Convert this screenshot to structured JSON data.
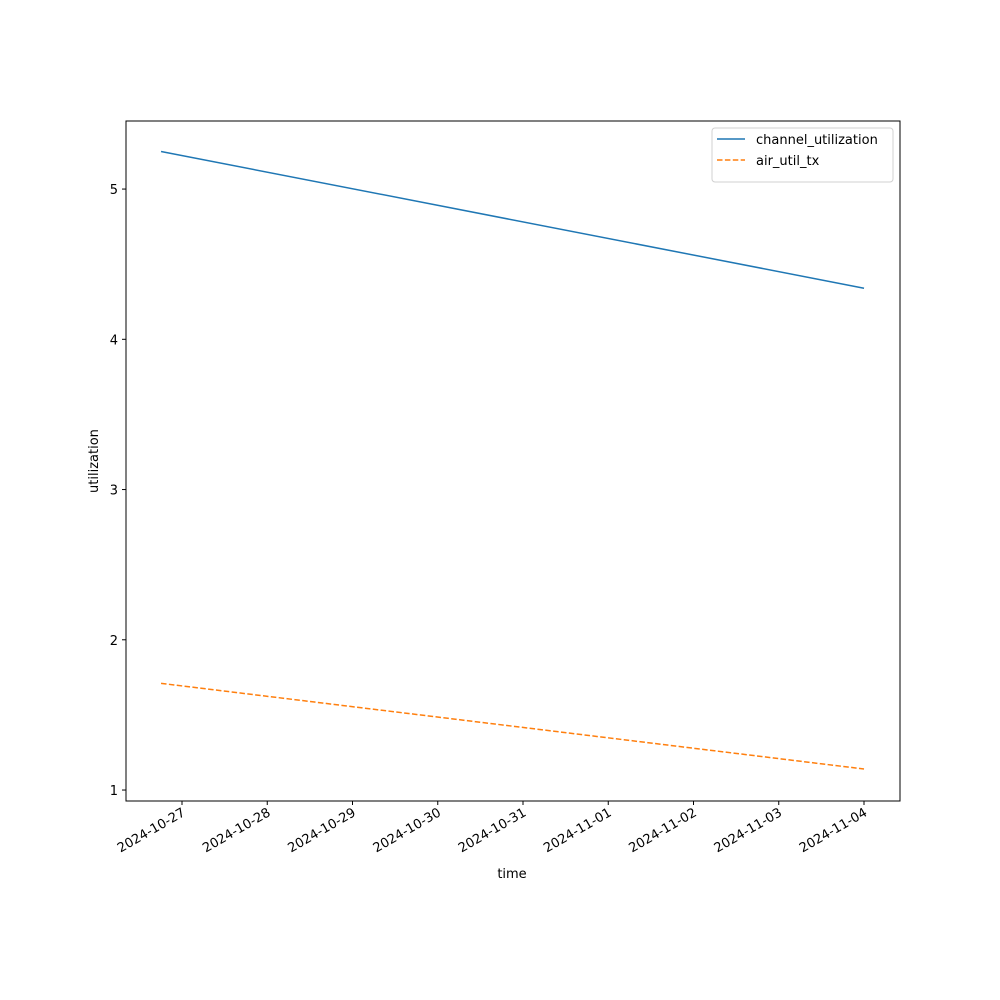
{
  "chart_data": {
    "type": "line",
    "x": [
      "2024-10-26T18:06",
      "2024-11-04T00:00"
    ],
    "series": [
      {
        "name": "channel_utilization",
        "color": "#1f77b4",
        "dash": "solid",
        "values": [
          5.25,
          4.34
        ]
      },
      {
        "name": "air_util_tx",
        "color": "#ff7f0e",
        "dash": "dashed",
        "values": [
          1.71,
          1.14
        ]
      }
    ],
    "xlabel": "time",
    "ylabel": "utilization",
    "xlim": [
      "2024-10-26T08:14",
      "2024-11-04T10:08"
    ],
    "ylim": [
      0.927,
      5.453
    ],
    "xticks": [
      "2024-10-27",
      "2024-10-28",
      "2024-10-29",
      "2024-10-30",
      "2024-10-31",
      "2024-11-01",
      "2024-11-02",
      "2024-11-03",
      "2024-11-04"
    ],
    "yticks": [
      1,
      2,
      3,
      4,
      5
    ],
    "grid": false,
    "legend": "upper right"
  }
}
